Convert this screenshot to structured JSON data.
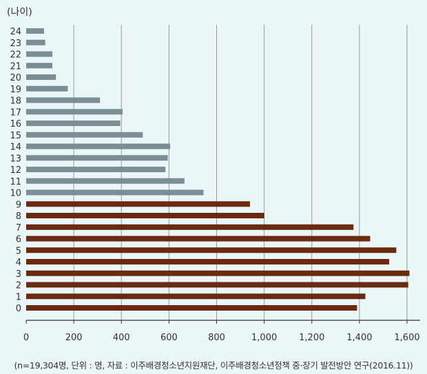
{
  "chart_data": {
    "type": "bar",
    "orientation": "horizontal",
    "ylabel": "(나이)",
    "xlabel": "",
    "xlim": [
      0,
      1650
    ],
    "xticks": [
      0,
      200,
      400,
      600,
      800,
      1000,
      1200,
      1400,
      1600
    ],
    "xtick_labels": [
      "0",
      "200",
      "400",
      "600",
      "800",
      "1,000",
      "1,200",
      "1,400",
      "1,600"
    ],
    "grid": "vertical",
    "categories": [
      "24",
      "23",
      "22",
      "21",
      "20",
      "19",
      "18",
      "17",
      "16",
      "15",
      "14",
      "13",
      "12",
      "11",
      "10",
      "9",
      "8",
      "7",
      "6",
      "5",
      "4",
      "3",
      "2",
      "1",
      "0"
    ],
    "values": [
      75,
      80,
      110,
      110,
      125,
      175,
      310,
      405,
      395,
      490,
      605,
      595,
      585,
      665,
      745,
      940,
      1000,
      1375,
      1445,
      1555,
      1525,
      1610,
      1605,
      1425,
      1390
    ],
    "colors": {
      "ages_10_to_24": "#7b8e94",
      "ages_0_to_9": "#6b2a10",
      "grid": "#9a9a9a",
      "axis": "#333333"
    }
  },
  "footnote": "(n=19,304명, 단위 : 명, 자료 : 이주배경청소년지원재단, 이주배경청소년정책 중·장기 발전방안 연구(2016.11))"
}
